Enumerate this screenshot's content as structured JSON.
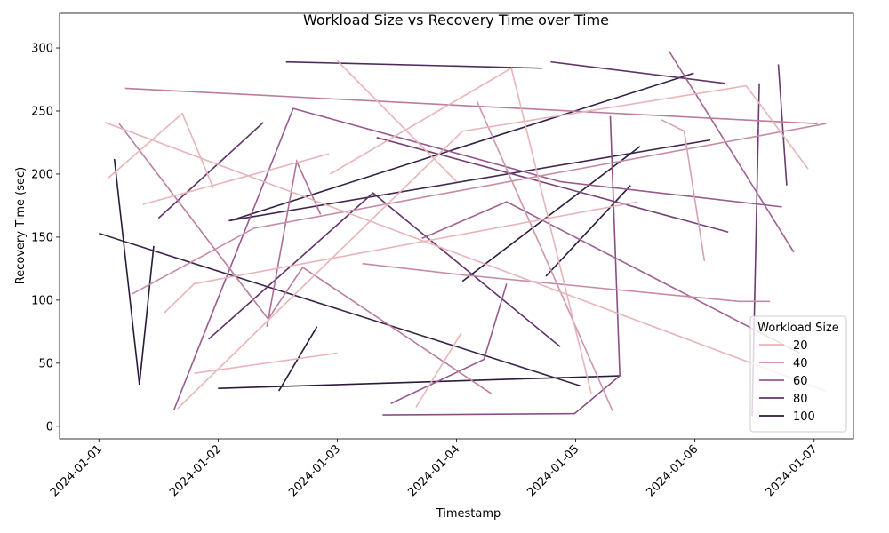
{
  "chart_data": {
    "type": "line",
    "title": "Workload Size vs Recovery Time over Time",
    "x_label": "Timestamp",
    "y_label": "Recovery Time (sec)",
    "xlim": [
      -0.33,
      6.33
    ],
    "ylim": [
      -10,
      327.5
    ],
    "xticks": [
      {
        "value": 0,
        "label": "2024-01-01"
      },
      {
        "value": 1,
        "label": "2024-01-02"
      },
      {
        "value": 2,
        "label": "2024-01-03"
      },
      {
        "value": 3,
        "label": "2024-01-04"
      },
      {
        "value": 4,
        "label": "2024-01-05"
      },
      {
        "value": 5,
        "label": "2024-01-06"
      },
      {
        "value": 6,
        "label": "2024-01-07"
      }
    ],
    "yticks": [
      0,
      50,
      100,
      150,
      200,
      250,
      300
    ],
    "legend": {
      "title": "Workload Size",
      "position": "lower right",
      "items": [
        {
          "label": 20,
          "color": "#e8b4b8"
        },
        {
          "label": 40,
          "color": "#c78aa6"
        },
        {
          "label": 60,
          "color": "#99598f"
        },
        {
          "label": 80,
          "color": "#5f3568"
        },
        {
          "label": 100,
          "color": "#2b1a3c"
        }
      ]
    },
    "series": [
      {
        "color": "#2b1a3c",
        "x": [
          0.13,
          0.34,
          0.46
        ],
        "values": [
          212,
          33,
          143
        ]
      },
      {
        "color": "#3b2548",
        "x": [
          0,
          4.04
        ],
        "values": [
          153,
          32
        ]
      },
      {
        "color": "#2b1a3c",
        "x": [
          1.0,
          4.37
        ],
        "values": [
          30,
          40
        ]
      },
      {
        "color": "#2b1a3c",
        "x": [
          1.51,
          1.83
        ],
        "values": [
          28,
          79
        ]
      },
      {
        "color": "#2b1a3c",
        "x": [
          3.05,
          4.54
        ],
        "values": [
          115,
          222
        ]
      },
      {
        "color": "#2b1a3c",
        "x": [
          3.75,
          4.46
        ],
        "values": [
          119,
          191
        ]
      },
      {
        "color": "#35214a",
        "x": [
          1.1,
          4.99
        ],
        "values": [
          163,
          280
        ]
      },
      {
        "color": "#3f2751",
        "x": [
          1.09,
          5.13
        ],
        "values": [
          163,
          227
        ]
      },
      {
        "color": "#4b2b5a",
        "x": [
          1.57,
          3.72
        ],
        "values": [
          289,
          284
        ]
      },
      {
        "color": "#5f3568",
        "x": [
          3.79,
          5.25
        ],
        "values": [
          289,
          272
        ]
      },
      {
        "color": "#5f3568",
        "x": [
          0.92,
          2.3,
          3.87
        ],
        "values": [
          69,
          185,
          63
        ]
      },
      {
        "color": "#5f3568",
        "x": [
          0.5,
          1.38
        ],
        "values": [
          165,
          241
        ]
      },
      {
        "color": "#6a3a70",
        "x": [
          5.48,
          5.54
        ],
        "values": [
          8,
          272
        ]
      },
      {
        "color": "#6a3a70",
        "x": [
          5.7,
          5.77
        ],
        "values": [
          287,
          191
        ]
      },
      {
        "color": "#774377",
        "x": [
          2.33,
          5.28
        ],
        "values": [
          229,
          154
        ]
      },
      {
        "color": "#99598f",
        "x": [
          0.63,
          1.63,
          3.87,
          5.73
        ],
        "values": [
          13,
          252,
          194,
          174
        ]
      },
      {
        "color": "#8a4f85",
        "x": [
          2.38,
          3.99,
          4.37,
          4.29
        ],
        "values": [
          9,
          10,
          40,
          246
        ]
      },
      {
        "color": "#99598f",
        "x": [
          2.45,
          3.23,
          3.42
        ],
        "values": [
          18,
          53,
          113
        ]
      },
      {
        "color": "#a3618f",
        "x": [
          4.78,
          5.83
        ],
        "values": [
          298,
          138
        ]
      },
      {
        "color": "#a3618f",
        "x": [
          2.71,
          3.42,
          5.88
        ],
        "values": [
          149,
          178,
          58
        ]
      },
      {
        "color": "#b06f97",
        "x": [
          1.41,
          1.66,
          1.86
        ],
        "values": [
          79,
          210,
          168
        ]
      },
      {
        "color": "#bb7c9e",
        "x": [
          0.22,
          6.03
        ],
        "values": [
          268,
          240
        ]
      },
      {
        "color": "#bb7c9e",
        "x": [
          0.17,
          1.42,
          1.71,
          3.29
        ],
        "values": [
          240,
          85,
          126,
          26
        ]
      },
      {
        "color": "#c78aa6",
        "x": [
          0.28,
          1.3,
          6.1
        ],
        "values": [
          105,
          157,
          240
        ]
      },
      {
        "color": "#c78aa6",
        "x": [
          2.21,
          3.05,
          5.37,
          5.63
        ],
        "values": [
          129,
          120,
          99,
          99
        ]
      },
      {
        "color": "#cf95aa",
        "x": [
          3.17,
          4.31
        ],
        "values": [
          258,
          12
        ]
      },
      {
        "color": "#d8a1ae",
        "x": [
          4.72,
          4.91,
          5.08
        ],
        "values": [
          243,
          234,
          131
        ]
      },
      {
        "color": "#e8b4b8",
        "x": [
          0.08,
          0.7,
          0.96
        ],
        "values": [
          197,
          248,
          189
        ]
      },
      {
        "color": "#e8b4b8",
        "x": [
          0.05,
          6.1
        ],
        "values": [
          241,
          28
        ]
      },
      {
        "color": "#e8b4b8",
        "x": [
          0.37,
          1.93
        ],
        "values": [
          176,
          216
        ]
      },
      {
        "color": "#e8b4b8",
        "x": [
          1.94,
          3.46,
          4.13
        ],
        "values": [
          200,
          284,
          26
        ]
      },
      {
        "color": "#e8b4b8",
        "x": [
          2.0,
          3.0
        ],
        "values": [
          290,
          194
        ]
      },
      {
        "color": "#e8b4b8",
        "x": [
          0.66,
          3.05,
          5.43,
          5.95
        ],
        "values": [
          14,
          234,
          270,
          204
        ]
      },
      {
        "color": "#e8b4b8",
        "x": [
          0.55,
          0.8,
          4.52
        ],
        "values": [
          90,
          113,
          178
        ]
      },
      {
        "color": "#e8b4b8",
        "x": [
          0.8,
          2.0
        ],
        "values": [
          42,
          58
        ]
      },
      {
        "color": "#e8b4b8",
        "x": [
          2.66,
          3.04
        ],
        "values": [
          15,
          74
        ]
      }
    ]
  }
}
